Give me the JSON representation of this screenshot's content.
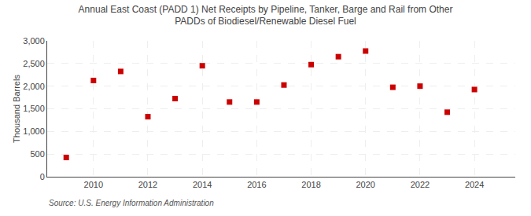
{
  "chart_data": {
    "type": "scatter",
    "title": "Annual East Coast (PADD 1) Net Receipts by Pipeline, Tanker, Barge and Rail from Other\nPADDs of Biodiesel/Renewable Diesel Fuel",
    "ylabel": "Thousand Barrels",
    "annotations": [
      "Source: U.S. Energy Information Administration"
    ],
    "x": [
      2009,
      2010,
      2011,
      2012,
      2013,
      2014,
      2015,
      2016,
      2017,
      2018,
      2019,
      2020,
      2021,
      2022,
      2023,
      2024
    ],
    "values": [
      425,
      2125,
      2325,
      1325,
      1725,
      2450,
      1650,
      1650,
      2025,
      2475,
      2650,
      2775,
      1975,
      2000,
      1425,
      1925
    ],
    "color": "#cc0000",
    "marker": "square",
    "xlim": [
      2008.3,
      2025.5
    ],
    "xticks": [
      2010,
      2012,
      2014,
      2016,
      2018,
      2020,
      2022,
      2024
    ],
    "ylim": [
      0,
      3000
    ],
    "yticks": [
      0,
      500,
      {
        "value": 1000,
        "label": "1,000"
      },
      {
        "value": 1500,
        "label": "1,500"
      },
      {
        "value": 2000,
        "label": "2,000"
      },
      {
        "value": 2500,
        "label": "2,500"
      },
      {
        "value": 3000,
        "label": "3,000"
      }
    ],
    "grid": true
  }
}
